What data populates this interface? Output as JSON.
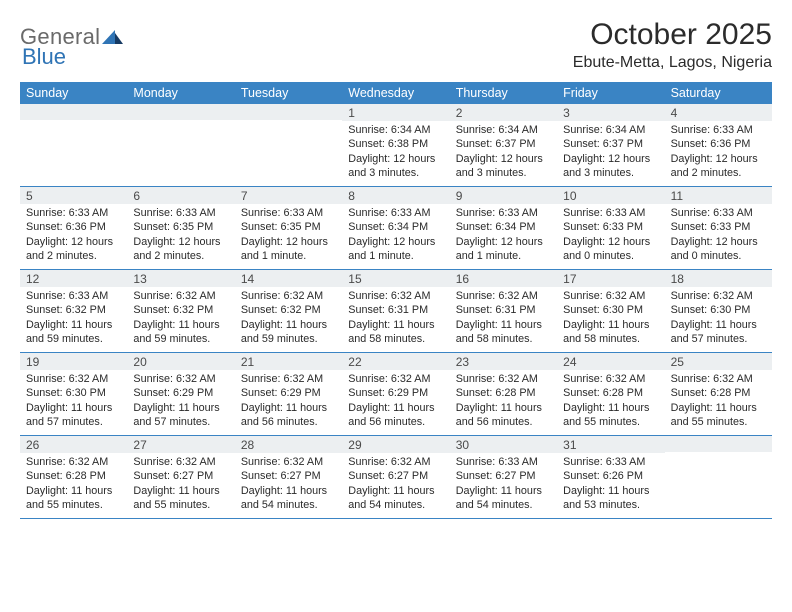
{
  "brand": {
    "general": "General",
    "blue": "Blue"
  },
  "title": "October 2025",
  "location": "Ebute-Metta, Lagos, Nigeria",
  "colors": {
    "header_bg": "#3a84c4",
    "header_text": "#ffffff",
    "daynum_bg": "#eceff1",
    "divider": "#3a84c4",
    "logo_gray": "#6a6a6a",
    "logo_blue": "#2f74b5",
    "logo_navy": "#163a63"
  },
  "fonts": {
    "title_size_pt": 22,
    "location_size_pt": 12,
    "weekday_size_pt": 9.5,
    "cell_size_pt": 8.2
  },
  "weekdays": [
    "Sunday",
    "Monday",
    "Tuesday",
    "Wednesday",
    "Thursday",
    "Friday",
    "Saturday"
  ],
  "weeks": [
    [
      null,
      null,
      null,
      {
        "n": "1",
        "sunrise": "6:34 AM",
        "sunset": "6:38 PM",
        "daylight": "12 hours and 3 minutes."
      },
      {
        "n": "2",
        "sunrise": "6:34 AM",
        "sunset": "6:37 PM",
        "daylight": "12 hours and 3 minutes."
      },
      {
        "n": "3",
        "sunrise": "6:34 AM",
        "sunset": "6:37 PM",
        "daylight": "12 hours and 3 minutes."
      },
      {
        "n": "4",
        "sunrise": "6:33 AM",
        "sunset": "6:36 PM",
        "daylight": "12 hours and 2 minutes."
      }
    ],
    [
      {
        "n": "5",
        "sunrise": "6:33 AM",
        "sunset": "6:36 PM",
        "daylight": "12 hours and 2 minutes."
      },
      {
        "n": "6",
        "sunrise": "6:33 AM",
        "sunset": "6:35 PM",
        "daylight": "12 hours and 2 minutes."
      },
      {
        "n": "7",
        "sunrise": "6:33 AM",
        "sunset": "6:35 PM",
        "daylight": "12 hours and 1 minute."
      },
      {
        "n": "8",
        "sunrise": "6:33 AM",
        "sunset": "6:34 PM",
        "daylight": "12 hours and 1 minute."
      },
      {
        "n": "9",
        "sunrise": "6:33 AM",
        "sunset": "6:34 PM",
        "daylight": "12 hours and 1 minute."
      },
      {
        "n": "10",
        "sunrise": "6:33 AM",
        "sunset": "6:33 PM",
        "daylight": "12 hours and 0 minutes."
      },
      {
        "n": "11",
        "sunrise": "6:33 AM",
        "sunset": "6:33 PM",
        "daylight": "12 hours and 0 minutes."
      }
    ],
    [
      {
        "n": "12",
        "sunrise": "6:33 AM",
        "sunset": "6:32 PM",
        "daylight": "11 hours and 59 minutes."
      },
      {
        "n": "13",
        "sunrise": "6:32 AM",
        "sunset": "6:32 PM",
        "daylight": "11 hours and 59 minutes."
      },
      {
        "n": "14",
        "sunrise": "6:32 AM",
        "sunset": "6:32 PM",
        "daylight": "11 hours and 59 minutes."
      },
      {
        "n": "15",
        "sunrise": "6:32 AM",
        "sunset": "6:31 PM",
        "daylight": "11 hours and 58 minutes."
      },
      {
        "n": "16",
        "sunrise": "6:32 AM",
        "sunset": "6:31 PM",
        "daylight": "11 hours and 58 minutes."
      },
      {
        "n": "17",
        "sunrise": "6:32 AM",
        "sunset": "6:30 PM",
        "daylight": "11 hours and 58 minutes."
      },
      {
        "n": "18",
        "sunrise": "6:32 AM",
        "sunset": "6:30 PM",
        "daylight": "11 hours and 57 minutes."
      }
    ],
    [
      {
        "n": "19",
        "sunrise": "6:32 AM",
        "sunset": "6:30 PM",
        "daylight": "11 hours and 57 minutes."
      },
      {
        "n": "20",
        "sunrise": "6:32 AM",
        "sunset": "6:29 PM",
        "daylight": "11 hours and 57 minutes."
      },
      {
        "n": "21",
        "sunrise": "6:32 AM",
        "sunset": "6:29 PM",
        "daylight": "11 hours and 56 minutes."
      },
      {
        "n": "22",
        "sunrise": "6:32 AM",
        "sunset": "6:29 PM",
        "daylight": "11 hours and 56 minutes."
      },
      {
        "n": "23",
        "sunrise": "6:32 AM",
        "sunset": "6:28 PM",
        "daylight": "11 hours and 56 minutes."
      },
      {
        "n": "24",
        "sunrise": "6:32 AM",
        "sunset": "6:28 PM",
        "daylight": "11 hours and 55 minutes."
      },
      {
        "n": "25",
        "sunrise": "6:32 AM",
        "sunset": "6:28 PM",
        "daylight": "11 hours and 55 minutes."
      }
    ],
    [
      {
        "n": "26",
        "sunrise": "6:32 AM",
        "sunset": "6:28 PM",
        "daylight": "11 hours and 55 minutes."
      },
      {
        "n": "27",
        "sunrise": "6:32 AM",
        "sunset": "6:27 PM",
        "daylight": "11 hours and 55 minutes."
      },
      {
        "n": "28",
        "sunrise": "6:32 AM",
        "sunset": "6:27 PM",
        "daylight": "11 hours and 54 minutes."
      },
      {
        "n": "29",
        "sunrise": "6:32 AM",
        "sunset": "6:27 PM",
        "daylight": "11 hours and 54 minutes."
      },
      {
        "n": "30",
        "sunrise": "6:33 AM",
        "sunset": "6:27 PM",
        "daylight": "11 hours and 54 minutes."
      },
      {
        "n": "31",
        "sunrise": "6:33 AM",
        "sunset": "6:26 PM",
        "daylight": "11 hours and 53 minutes."
      },
      null
    ]
  ],
  "labels": {
    "sunrise": "Sunrise: ",
    "sunset": "Sunset: ",
    "daylight": "Daylight: "
  }
}
